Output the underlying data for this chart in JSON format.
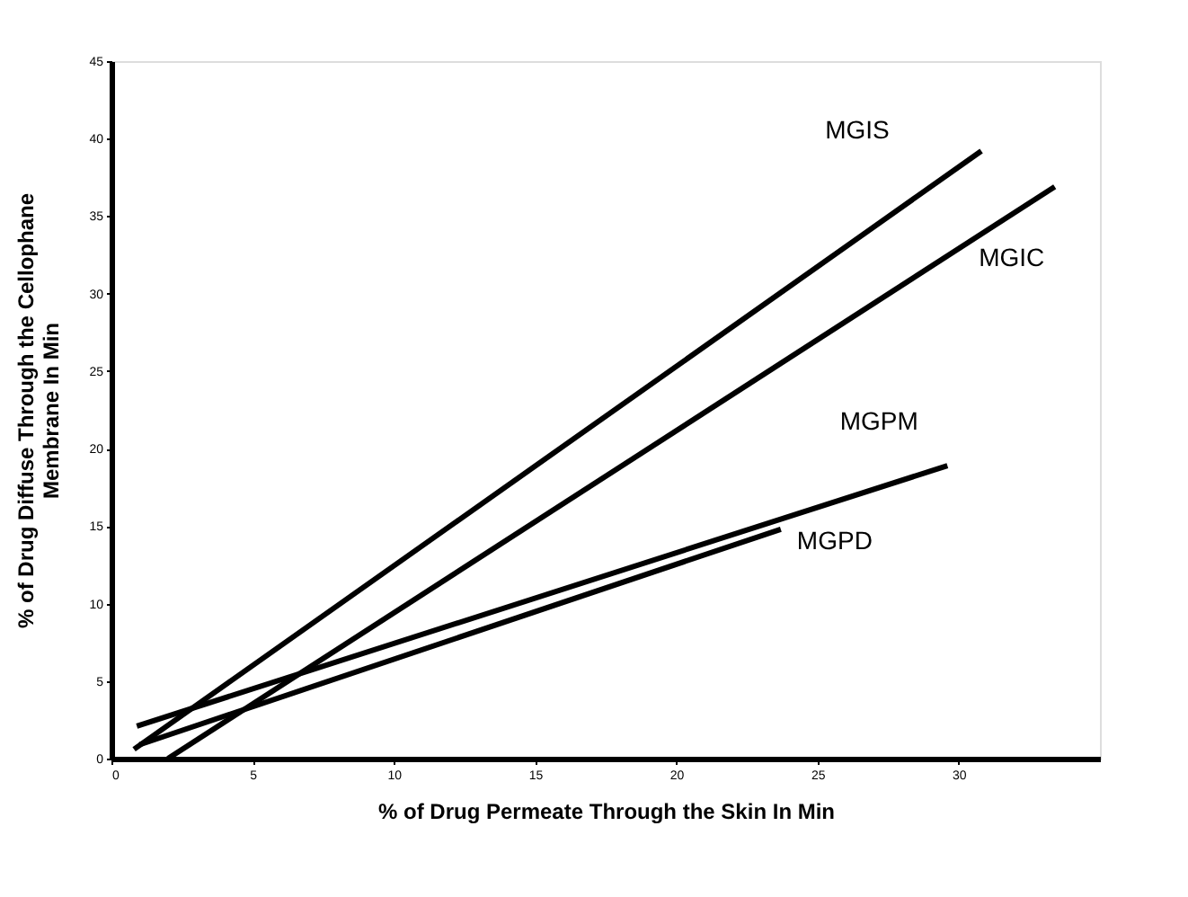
{
  "chart_data": {
    "type": "line",
    "xlabel": "% of Drug Permeate Through the Skin In Min",
    "ylabel": [
      "% of Drug Diffuse Through the Cellophane",
      "Membrane In Min"
    ],
    "xlim": [
      0,
      35
    ],
    "xticks": [
      0,
      5,
      10,
      15,
      20,
      25,
      30
    ],
    "ylim": [
      0,
      45
    ],
    "yticks": [
      0,
      5,
      10,
      15,
      20,
      25,
      30,
      35,
      40,
      45
    ],
    "grid": false,
    "legend": false,
    "marker": "none",
    "line_style": "solid",
    "series": [
      {
        "name": "MGIS",
        "color": "#000000",
        "x": [
          0.8,
          30.8
        ],
        "values": [
          0.6,
          39.2
        ]
      },
      {
        "name": "MGIC",
        "color": "#000000",
        "x": [
          2.0,
          33.4
        ],
        "values": [
          0,
          36.9
        ]
      },
      {
        "name": "MGPM",
        "color": "#000000",
        "x": [
          0.9,
          29.6
        ],
        "values": [
          2.1,
          18.9
        ]
      },
      {
        "name": "MGPD",
        "color": "#000000",
        "x": [
          1.0,
          23.7
        ],
        "values": [
          0.9,
          14.8
        ]
      }
    ]
  }
}
